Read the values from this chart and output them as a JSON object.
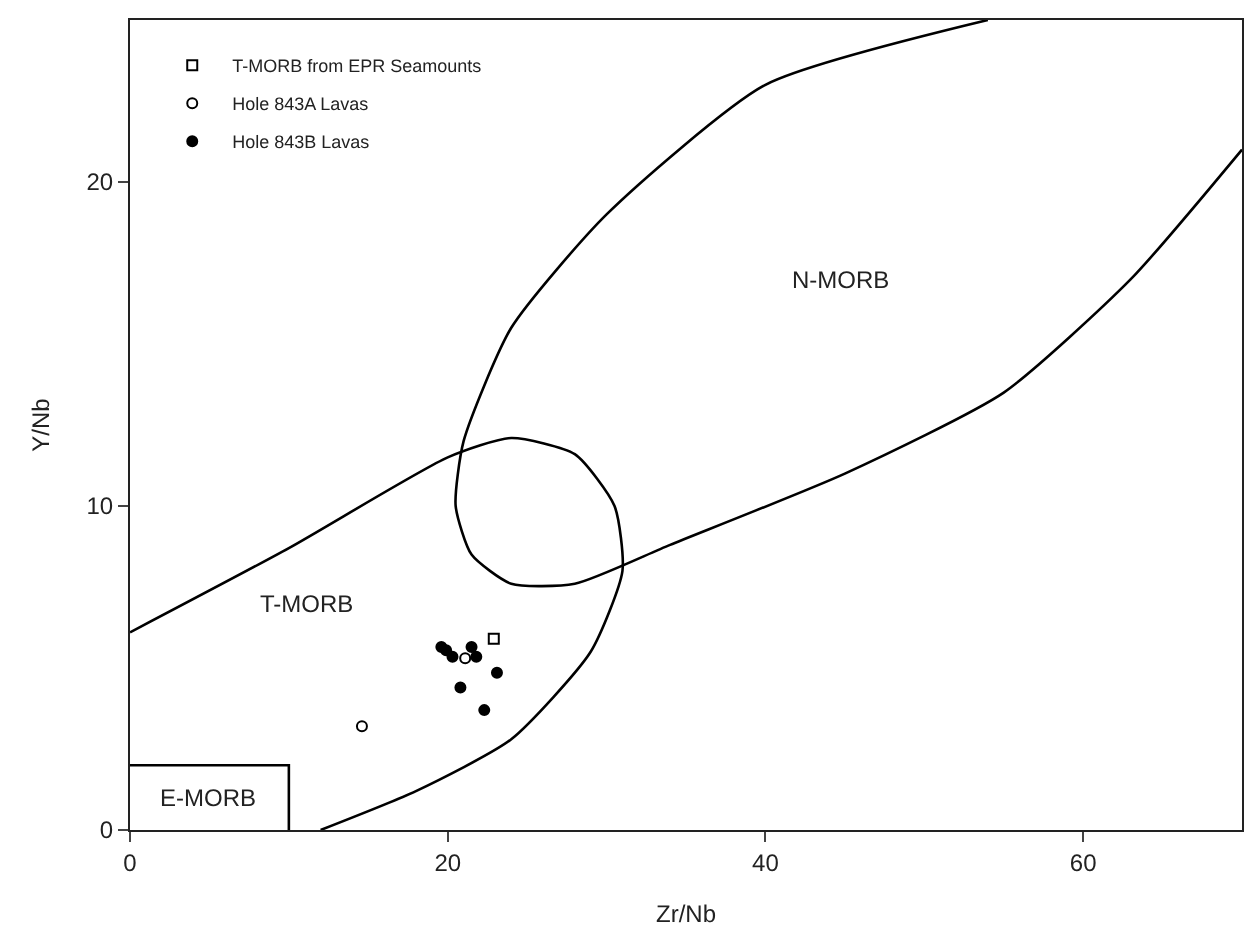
{
  "chart_data": {
    "type": "scatter",
    "xlabel": "Zr/Nb",
    "ylabel": "Y/Nb",
    "xlim": [
      0,
      70
    ],
    "ylim": [
      0,
      25
    ],
    "xticks": [
      0,
      20,
      40,
      60
    ],
    "yticks": [
      0,
      10,
      20
    ],
    "legend": "top left",
    "series": [
      {
        "name": "T-MORB from EPR Seamounts",
        "color": "#000000",
        "marker": "square",
        "x": [
          22.9
        ],
        "values": [
          5.9
        ]
      },
      {
        "name": "Hole 843A Lavas",
        "color": "#000000",
        "marker": "circle",
        "x": [
          21.1,
          14.6
        ],
        "values": [
          5.3,
          3.2
        ]
      },
      {
        "name": "Hole 843B Lavas",
        "color": "#000000",
        "marker": "circle",
        "x": [
          19.6,
          19.9,
          20.3,
          21.5,
          21.8,
          23.1,
          20.8,
          22.3
        ],
        "values": [
          5.65,
          5.55,
          5.35,
          5.65,
          5.35,
          4.85,
          4.4,
          3.7
        ]
      },
      {
        "type": "line",
        "color": "#000000",
        "marker": "none",
        "x": [
          0,
          10,
          20,
          24,
          28,
          30.5,
          31,
          29,
          24,
          18,
          12
        ],
        "values": [
          6.1,
          8.7,
          11.5,
          12.1,
          11.6,
          10,
          8,
          5.5,
          2.8,
          1.2,
          0
        ]
      },
      {
        "type": "line",
        "color": "#000000",
        "marker": "none",
        "x": [
          54,
          40,
          30,
          24,
          21,
          20.5,
          21.5,
          24,
          28,
          34,
          45,
          55,
          63,
          70
        ],
        "values": [
          25,
          23,
          19,
          15.5,
          12,
          10,
          8.5,
          7.6,
          7.6,
          8.8,
          11,
          13.5,
          17,
          21
        ]
      },
      {
        "type": "line",
        "color": "#000000",
        "marker": "none",
        "x": [
          0,
          10,
          10
        ],
        "values": [
          2,
          2,
          0
        ]
      }
    ],
    "annotations": [
      "T-MORB",
      "N-MORB",
      "E-MORB"
    ]
  }
}
